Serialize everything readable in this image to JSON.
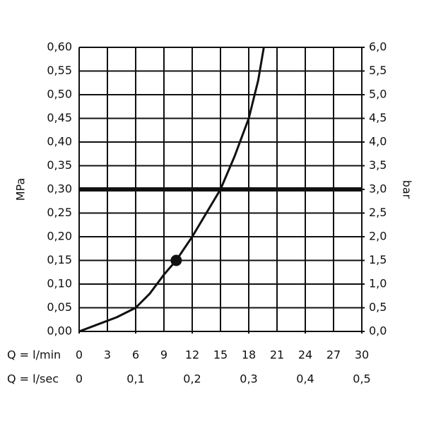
{
  "chart_data": {
    "type": "line",
    "y_label": "MPa",
    "y2_label": "bar",
    "x_row_label": "Q = l/min",
    "x2_row_label": "Q = l/sec",
    "xlim": [
      0,
      30
    ],
    "xticks": [
      0,
      3,
      6,
      9,
      12,
      15,
      18,
      21,
      24,
      27,
      30
    ],
    "x2lim": [
      0,
      0.5
    ],
    "x2ticks": [
      0,
      {
        "value": 0.1,
        "label": "0,1"
      },
      {
        "value": 0.2,
        "label": "0,2"
      },
      {
        "value": 0.3,
        "label": "0,3"
      },
      {
        "value": 0.4,
        "label": "0,4"
      },
      {
        "value": 0.5,
        "label": "0,5"
      }
    ],
    "ylim": [
      0,
      0.6
    ],
    "yticks": [
      {
        "value": 0,
        "label": "0,00"
      },
      {
        "value": 0.05,
        "label": "0,05"
      },
      {
        "value": 0.1,
        "label": "0,10"
      },
      {
        "value": 0.15,
        "label": "0,15"
      },
      {
        "value": 0.2,
        "label": "0,20"
      },
      {
        "value": 0.25,
        "label": "0,25"
      },
      {
        "value": 0.3,
        "label": "0,30"
      },
      {
        "value": 0.35,
        "label": "0,35"
      },
      {
        "value": 0.4,
        "label": "0,40"
      },
      {
        "value": 0.45,
        "label": "0,45"
      },
      {
        "value": 0.5,
        "label": "0,50"
      },
      {
        "value": 0.55,
        "label": "0,55"
      },
      {
        "value": 0.6,
        "label": "0,60"
      }
    ],
    "y2lim": [
      0,
      6
    ],
    "y2ticks": [
      {
        "value": 0,
        "label": "0,0"
      },
      {
        "value": 0.5,
        "label": "0,5"
      },
      {
        "value": 1,
        "label": "1,0"
      },
      {
        "value": 1.5,
        "label": "1,5"
      },
      {
        "value": 2,
        "label": "2,0"
      },
      {
        "value": 2.5,
        "label": "2,5"
      },
      {
        "value": 3,
        "label": "3,0"
      },
      {
        "value": 3.5,
        "label": "3,5"
      },
      {
        "value": 4,
        "label": "4,0"
      },
      {
        "value": 4.5,
        "label": "4,5"
      },
      {
        "value": 5,
        "label": "5,0"
      },
      {
        "value": 5.5,
        "label": "5,5"
      },
      {
        "value": 6,
        "label": "6,0"
      }
    ],
    "grid": true,
    "color": "#111111",
    "x": [
      0,
      2,
      4,
      6,
      7.5,
      9,
      10.3,
      12,
      13.5,
      15,
      16.5,
      18,
      19,
      19.6
    ],
    "values": [
      0,
      0.015,
      0.03,
      0.05,
      0.08,
      0.12,
      0.15,
      0.2,
      0.25,
      0.3,
      0.37,
      0.45,
      0.53,
      0.6
    ],
    "reference_line": {
      "y": 0.3
    },
    "drop_line": {
      "x": 15,
      "y": 0.3
    },
    "marker": {
      "x": 10.3,
      "y": 0.15
    }
  }
}
